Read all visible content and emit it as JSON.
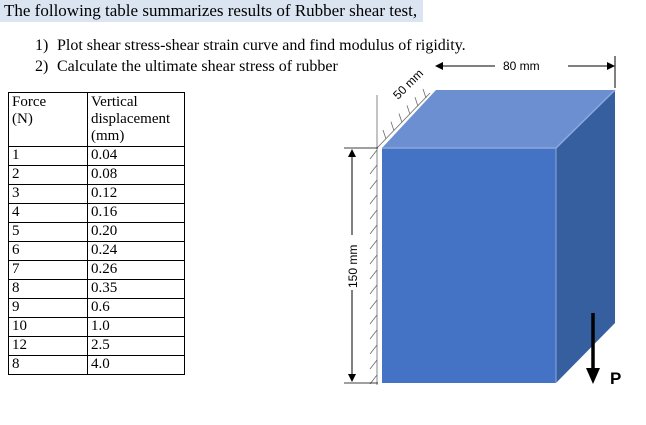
{
  "heading": "The following table summarizes results of Rubber shear test,",
  "tasks": [
    {
      "num": "1)",
      "text": "Plot shear stress-shear strain curve and find modulus of rigidity."
    },
    {
      "num": "2)",
      "text": "Calculate the ultimate shear stress of rubber"
    }
  ],
  "table": {
    "headers": {
      "force": [
        "Force",
        "(N)"
      ],
      "displacement": [
        "Vertical",
        "displacement",
        "(mm)"
      ]
    },
    "rows": [
      {
        "force": "1",
        "displacement": "0.04"
      },
      {
        "force": "2",
        "displacement": "0.08"
      },
      {
        "force": "3",
        "displacement": "0.12"
      },
      {
        "force": "4",
        "displacement": "0.16"
      },
      {
        "force": "5",
        "displacement": "0.20"
      },
      {
        "force": "6",
        "displacement": "0.24"
      },
      {
        "force": "7",
        "displacement": "0.26"
      },
      {
        "force": "8",
        "displacement": "0.35"
      },
      {
        "force": "9",
        "displacement": "0.6"
      },
      {
        "force": "10",
        "displacement": "1.0"
      },
      {
        "force": "12",
        "displacement": "2.5"
      },
      {
        "force": "8",
        "displacement": "4.0"
      }
    ]
  },
  "diagram": {
    "dim_width": "80 mm",
    "dim_depth": "50 mm",
    "dim_height": "150 mm",
    "load_label": "P",
    "colors": {
      "front": "#4472c4",
      "top": "#6b8fd1",
      "side": "#365fa0",
      "edge": "#8ea9db"
    }
  }
}
